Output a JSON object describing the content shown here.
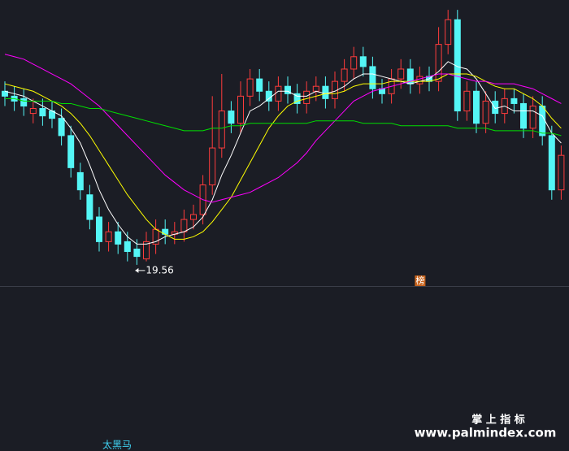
{
  "chart_data": {
    "type": "candlestick",
    "open": [
      26.6,
      26.4,
      26.3,
      25.7,
      25.9,
      25.8,
      25.5,
      24.8,
      23.3,
      22.4,
      21.5,
      20.5,
      20.9,
      20.5,
      20.2,
      19.8,
      20.4,
      21.0,
      20.8,
      20.9,
      21.4,
      21.6,
      22.8,
      24.3,
      25.8,
      25.3,
      26.4,
      27.1,
      26.6,
      26.2,
      26.8,
      26.5,
      26.1,
      26.6,
      26.8,
      26.3,
      27.0,
      27.5,
      28.0,
      27.6,
      26.7,
      26.5,
      27.1,
      27.5,
      26.9,
      27.2,
      27.0,
      28.5,
      29.5,
      25.8,
      26.6,
      25.3,
      26.2,
      25.7,
      26.3,
      26.1,
      25.1,
      26.0,
      24.8,
      22.6
    ],
    "high": [
      27.0,
      26.8,
      26.7,
      26.3,
      26.3,
      26.2,
      25.9,
      25.2,
      23.7,
      22.8,
      21.9,
      21.3,
      21.3,
      20.9,
      20.6,
      20.9,
      21.4,
      21.4,
      21.3,
      21.8,
      22.0,
      23.2,
      26.4,
      27.3,
      26.2,
      27.0,
      27.5,
      27.5,
      27.0,
      27.2,
      27.2,
      26.9,
      27.0,
      27.2,
      27.2,
      27.4,
      27.9,
      28.4,
      28.4,
      28.0,
      27.1,
      27.5,
      27.9,
      27.9,
      27.6,
      27.6,
      29.2,
      29.9,
      29.9,
      27.0,
      27.0,
      26.6,
      26.6,
      26.7,
      26.7,
      26.5,
      26.4,
      26.4,
      25.2,
      24.4
    ],
    "low": [
      26.0,
      25.8,
      25.6,
      25.3,
      25.2,
      25.1,
      24.4,
      23.1,
      22.2,
      21.0,
      20.1,
      20.1,
      20.0,
      19.7,
      19.56,
      19.7,
      20.0,
      20.4,
      20.4,
      20.5,
      21.0,
      21.2,
      22.4,
      23.9,
      24.9,
      24.9,
      26.0,
      26.2,
      25.8,
      25.8,
      26.1,
      25.7,
      25.7,
      26.2,
      25.9,
      25.9,
      26.6,
      27.1,
      27.2,
      26.3,
      26.1,
      26.1,
      26.7,
      26.5,
      26.5,
      26.6,
      26.6,
      28.1,
      25.4,
      25.4,
      24.9,
      24.9,
      25.3,
      25.3,
      25.7,
      24.7,
      24.7,
      24.4,
      22.2,
      22.2
    ],
    "close": [
      26.4,
      26.2,
      26.0,
      25.9,
      25.6,
      25.5,
      24.8,
      23.5,
      22.6,
      21.4,
      20.5,
      20.9,
      20.4,
      20.1,
      19.9,
      20.5,
      21.0,
      20.8,
      20.9,
      21.4,
      21.6,
      22.8,
      24.3,
      25.8,
      25.3,
      26.4,
      27.1,
      26.6,
      26.2,
      26.8,
      26.5,
      26.1,
      26.6,
      26.8,
      26.3,
      27.0,
      27.5,
      28.0,
      27.6,
      26.7,
      26.5,
      27.1,
      27.5,
      26.9,
      27.2,
      27.0,
      28.5,
      29.5,
      25.8,
      26.6,
      25.3,
      26.2,
      25.7,
      26.3,
      26.1,
      25.1,
      26.0,
      24.8,
      22.6,
      24.0
    ],
    "up_color": "#ff3c3c",
    "down_color": "#54f6f6",
    "lines": [
      {
        "color": "#ffffff",
        "values": [
          26.6,
          26.5,
          26.4,
          26.2,
          26.0,
          25.8,
          25.6,
          25.1,
          24.5,
          23.6,
          22.6,
          21.8,
          21.2,
          20.7,
          20.4,
          20.4,
          20.5,
          20.7,
          20.8,
          20.9,
          21.1,
          21.5,
          22.2,
          23.2,
          24.0,
          24.9,
          25.8,
          26.0,
          26.3,
          26.6,
          26.6,
          26.4,
          26.4,
          26.6,
          26.5,
          26.6,
          26.8,
          27.1,
          27.3,
          27.3,
          27.2,
          27.1,
          27.0,
          26.9,
          27.0,
          27.1,
          27.4,
          27.8,
          27.6,
          27.5,
          27.1,
          26.5,
          25.9,
          26.0,
          25.8,
          25.8,
          25.8,
          25.6,
          24.9,
          24.5
        ]
      },
      {
        "color": "#ffff00",
        "values": [
          26.9,
          26.8,
          26.7,
          26.6,
          26.4,
          26.2,
          26.0,
          25.7,
          25.3,
          24.8,
          24.2,
          23.6,
          23.0,
          22.4,
          21.9,
          21.4,
          21.0,
          20.8,
          20.6,
          20.6,
          20.7,
          20.9,
          21.3,
          21.8,
          22.3,
          23.0,
          23.7,
          24.4,
          25.1,
          25.6,
          26.0,
          26.2,
          26.3,
          26.4,
          26.5,
          26.5,
          26.6,
          26.8,
          26.9,
          26.9,
          26.9,
          27.0,
          27.0,
          27.0,
          27.0,
          27.0,
          27.1,
          27.3,
          27.3,
          27.3,
          27.2,
          27.0,
          26.8,
          26.7,
          26.7,
          26.5,
          26.3,
          26.0,
          25.5,
          25.1
        ]
      },
      {
        "color": "#ff00ff",
        "values": [
          28.1,
          28.0,
          27.9,
          27.7,
          27.5,
          27.3,
          27.1,
          26.9,
          26.6,
          26.3,
          26.0,
          25.6,
          25.2,
          24.8,
          24.4,
          24.0,
          23.6,
          23.2,
          22.9,
          22.6,
          22.4,
          22.2,
          22.1,
          22.2,
          22.3,
          22.4,
          22.5,
          22.7,
          22.9,
          23.1,
          23.4,
          23.7,
          24.1,
          24.6,
          25.0,
          25.4,
          25.8,
          26.2,
          26.4,
          26.6,
          26.7,
          26.8,
          26.9,
          27.0,
          27.1,
          27.2,
          27.3,
          27.3,
          27.2,
          27.1,
          27.0,
          27.0,
          26.9,
          26.9,
          26.9,
          26.8,
          26.7,
          26.5,
          26.3,
          26.1
        ]
      },
      {
        "color": "#00e000",
        "values": [
          26.3,
          26.3,
          26.2,
          26.2,
          26.2,
          26.2,
          26.1,
          26.1,
          26.0,
          25.9,
          25.9,
          25.8,
          25.7,
          25.6,
          25.5,
          25.4,
          25.3,
          25.2,
          25.1,
          25.0,
          25.0,
          25.0,
          25.1,
          25.1,
          25.2,
          25.2,
          25.3,
          25.3,
          25.3,
          25.3,
          25.3,
          25.3,
          25.3,
          25.4,
          25.4,
          25.4,
          25.4,
          25.4,
          25.3,
          25.3,
          25.3,
          25.3,
          25.2,
          25.2,
          25.2,
          25.2,
          25.2,
          25.2,
          25.1,
          25.1,
          25.1,
          25.1,
          25.0,
          25.0,
          25.0,
          25.0,
          25.0,
          24.9,
          24.9,
          24.8
        ]
      }
    ],
    "ylim": [
      18.7,
      30.3
    ],
    "marker": {
      "label": "榜",
      "index": 44
    },
    "indicator": "太黑马"
  },
  "watermark": {
    "title": "掌 上 指 标",
    "url": "www.palmindex.com"
  }
}
